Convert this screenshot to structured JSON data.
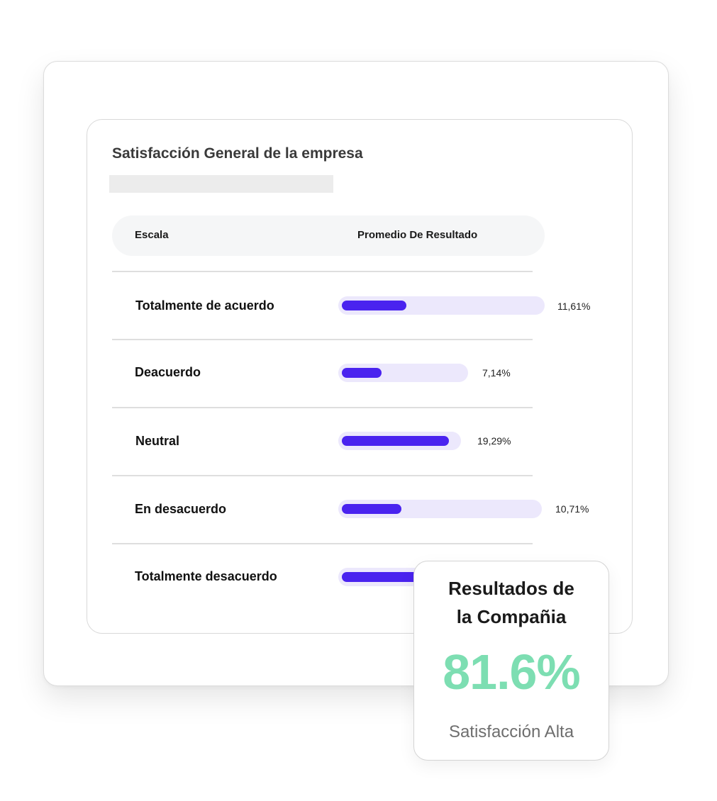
{
  "card": {
    "title": "Satisfacción General de la empresa",
    "header": {
      "escala": "Escala",
      "promedio": "Promedio De Resultado"
    }
  },
  "rows": [
    {
      "label": "Totalmente de acuerdo",
      "value": 11.61,
      "value_text": "11,61%"
    },
    {
      "label": "Deacuerdo",
      "value": 7.14,
      "value_text": "7,14%"
    },
    {
      "label": "Neutral",
      "value": 19.29,
      "value_text": "19,29%"
    },
    {
      "label": "En desacuerdo",
      "value": 10.71,
      "value_text": "10,71%"
    },
    {
      "label": "Totalmente desacuerdo",
      "value": null,
      "value_text": ""
    }
  ],
  "colors": {
    "bar_fill": "#4a23ef",
    "bar_track": "#ece8fc",
    "result_value": "#7ddeb2"
  },
  "result": {
    "title_line1": "Resultados de",
    "title_line2": "la Compañia",
    "value": "81.6%",
    "caption": "Satisfacción Alta"
  }
}
